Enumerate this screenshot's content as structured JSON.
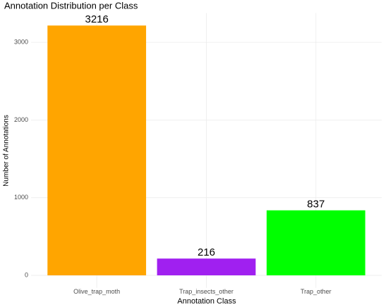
{
  "chart_data": {
    "type": "bar",
    "title": "Annotation Distribution per Class",
    "x_label": "Annotation Class",
    "y_label": "Number of Annotations",
    "categories": [
      "Olive_trap_moth",
      "Trap_insects_other",
      "Trap_other"
    ],
    "values": [
      3216,
      216,
      837
    ],
    "colors": [
      "#FFA500",
      "#A020F0",
      "#00FF00"
    ],
    "ylim": [
      -161,
      3377
    ],
    "yticks": [
      0,
      1000,
      2000,
      3000
    ],
    "grid": true
  }
}
